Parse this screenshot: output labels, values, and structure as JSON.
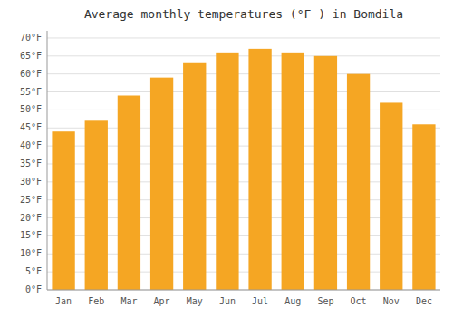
{
  "chart_data": {
    "type": "bar",
    "title": "Average monthly temperatures (°F ) in Bomdila",
    "categories": [
      "Jan",
      "Feb",
      "Mar",
      "Apr",
      "May",
      "Jun",
      "Jul",
      "Aug",
      "Sep",
      "Oct",
      "Nov",
      "Dec"
    ],
    "values": [
      44,
      47,
      54,
      59,
      63,
      66,
      67,
      66,
      65,
      60,
      52,
      46
    ],
    "color": "#F5A623",
    "ylim": [
      0,
      72
    ],
    "yticks": [
      {
        "value": 0,
        "label": "0°F"
      },
      {
        "value": 5,
        "label": "5°F"
      },
      {
        "value": 10,
        "label": "10°F"
      },
      {
        "value": 15,
        "label": "15°F"
      },
      {
        "value": 20,
        "label": "20°F"
      },
      {
        "value": 25,
        "label": "25°F"
      },
      {
        "value": 30,
        "label": "30°F"
      },
      {
        "value": 35,
        "label": "35°F"
      },
      {
        "value": 40,
        "label": "40°F"
      },
      {
        "value": 45,
        "label": "45°F"
      },
      {
        "value": 50,
        "label": "50°F"
      },
      {
        "value": 55,
        "label": "55°F"
      },
      {
        "value": 60,
        "label": "60°F"
      },
      {
        "value": 65,
        "label": "65°F"
      },
      {
        "value": 70,
        "label": "70°F"
      }
    ],
    "grid": true
  }
}
